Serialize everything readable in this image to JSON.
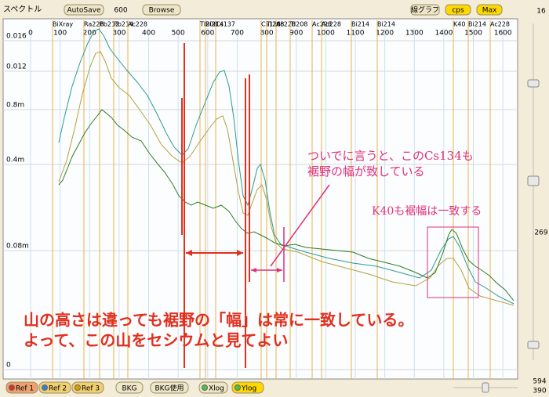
{
  "toolbar": {
    "title": "スペクトル",
    "autosave": "AutoSave",
    "count": "600",
    "browse": "Browse",
    "graph_mode": "線グラフ",
    "cps": "cps",
    "max": "Max"
  },
  "x_axis": {
    "xlim": [
      -93,
      1650
    ],
    "ticks": [
      0,
      100,
      200,
      300,
      400,
      500,
      600,
      700,
      800,
      900,
      1000,
      1100,
      1200,
      1300,
      1400,
      1500,
      1600
    ]
  },
  "y_labels": [
    "0.016",
    "0.012",
    "0.8m",
    "0.4m",
    "0.08m",
    "0"
  ],
  "nuclides": [
    "BiXray",
    "Ra226",
    "Pb212",
    "Pb214",
    "Ac228",
    "Tl208",
    "Bi214",
    "Cs137",
    "Cs134",
    "Tl208",
    "Ac228",
    "Tl208",
    "Ac228",
    "Ac228",
    "Bi214",
    "Bi214",
    "K40",
    "Bi214",
    "Ac228"
  ],
  "annotations": {
    "main_1": "山の高さは違っても裾野の「幅」は常に一致している。",
    "main_2": "よって、この山をセシウムと見てよい",
    "cs134_1": "ついでに言うと、このCs134も",
    "cs134_2": "裾野の幅が致している",
    "k40": "K40も裾幅は一致する"
  },
  "bottom_bar": {
    "ref1": "Ref 1",
    "ref2": "Ref 2",
    "ref3": "Ref 3",
    "bkg": "BKG",
    "bkg_use": "BKG使用",
    "xlog": "Xlog",
    "ylog": "Ylog"
  },
  "side_panel": {
    "top": "16",
    "middle": "269",
    "bottom_1": "594",
    "bottom_2": "390"
  }
}
